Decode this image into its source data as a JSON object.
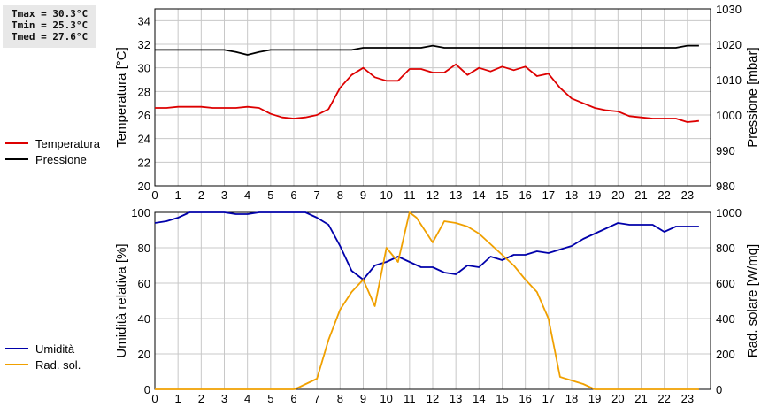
{
  "stats": {
    "tmax": "Tmax = 30.3°C",
    "tmin": "Tmin = 25.3°C",
    "tmed": "Tmed = 27.6°C"
  },
  "colors": {
    "temperatura": "#dd0000",
    "pressione": "#000000",
    "umidita": "#0000aa",
    "radsol": "#f0a000",
    "grid": "#c8c8c8",
    "axis": "#000000"
  },
  "chart_data": [
    {
      "type": "line",
      "title": "",
      "xlabel": "",
      "x_ticks": [
        "0",
        "1",
        "2",
        "3",
        "4",
        "5",
        "6",
        "7",
        "8",
        "9",
        "10",
        "11",
        "12",
        "13",
        "14",
        "15",
        "16",
        "17",
        "18",
        "19",
        "20",
        "21",
        "22",
        "23"
      ],
      "xlim": [
        0,
        24
      ],
      "ylabel_left": "Temperatura [°C]",
      "ylim_left": [
        20,
        35
      ],
      "yticks_left": [
        "20",
        "22",
        "24",
        "26",
        "28",
        "30",
        "32",
        "34"
      ],
      "ylabel_right": "Pressione [mbar]",
      "ylim_right": [
        980,
        1030
      ],
      "yticks_right": [
        "980",
        "990",
        "1000",
        "1010",
        "1020",
        "1030"
      ],
      "grid": true,
      "legend": "left",
      "series": [
        {
          "name": "Temperatura",
          "axis": "left",
          "x": [
            0,
            0.5,
            1,
            1.5,
            2,
            2.5,
            3,
            3.5,
            4,
            4.5,
            5,
            5.5,
            6,
            6.5,
            7,
            7.5,
            8,
            8.5,
            9,
            9.5,
            10,
            10.5,
            11,
            11.5,
            12,
            12.5,
            13,
            13.5,
            14,
            14.5,
            15,
            15.5,
            16,
            16.5,
            17,
            17.5,
            18,
            18.5,
            19,
            19.5,
            20,
            20.5,
            21,
            21.5,
            22,
            22.5,
            23,
            23.5
          ],
          "values": [
            26.6,
            26.6,
            26.7,
            26.7,
            26.7,
            26.6,
            26.6,
            26.6,
            26.7,
            26.6,
            26.1,
            25.8,
            25.7,
            25.8,
            26.0,
            26.5,
            28.3,
            29.4,
            30.0,
            29.2,
            28.9,
            28.9,
            29.9,
            29.9,
            29.6,
            29.6,
            30.3,
            29.4,
            30.0,
            29.7,
            30.1,
            29.8,
            30.1,
            29.3,
            29.5,
            28.3,
            27.4,
            27.0,
            26.6,
            26.4,
            26.3,
            25.9,
            25.8,
            25.7,
            25.7,
            25.7,
            25.4,
            25.5
          ]
        },
        {
          "name": "Pressione",
          "axis": "right",
          "x": [
            0,
            0.5,
            1,
            1.5,
            2,
            2.5,
            3,
            3.5,
            4,
            4.5,
            5,
            5.5,
            6,
            6.5,
            7,
            7.5,
            8,
            8.5,
            9,
            9.5,
            10,
            10.5,
            11,
            11.5,
            12,
            12.5,
            13,
            13.5,
            14,
            14.5,
            15,
            15.5,
            16,
            16.5,
            17,
            17.5,
            18,
            18.5,
            19,
            19.5,
            20,
            20.5,
            21,
            21.5,
            22,
            22.5,
            23,
            23.5
          ],
          "values": [
            1018.4,
            1018.4,
            1018.4,
            1018.4,
            1018.4,
            1018.4,
            1018.4,
            1017.8,
            1017.0,
            1017.8,
            1018.4,
            1018.4,
            1018.4,
            1018.4,
            1018.4,
            1018.4,
            1018.4,
            1018.4,
            1019.0,
            1019.0,
            1019.0,
            1019.0,
            1019.0,
            1019.0,
            1019.6,
            1019.0,
            1019.0,
            1019.0,
            1019.0,
            1019.0,
            1019.0,
            1019.0,
            1019.0,
            1019.0,
            1019.0,
            1019.0,
            1019.0,
            1019.0,
            1019.0,
            1019.0,
            1019.0,
            1019.0,
            1019.0,
            1019.0,
            1019.0,
            1019.0,
            1019.6,
            1019.6
          ]
        }
      ]
    },
    {
      "type": "line",
      "title": "",
      "xlabel": "",
      "x_ticks": [
        "0",
        "1",
        "2",
        "3",
        "4",
        "5",
        "6",
        "7",
        "8",
        "9",
        "10",
        "11",
        "12",
        "13",
        "14",
        "15",
        "16",
        "17",
        "18",
        "19",
        "20",
        "21",
        "22",
        "23"
      ],
      "xlim": [
        0,
        24
      ],
      "ylabel_left": "Umidità relativa [%]",
      "ylim_left": [
        0,
        100
      ],
      "yticks_left": [
        "0",
        "20",
        "40",
        "60",
        "80",
        "100"
      ],
      "ylabel_right": "Rad. solare [W/mq]",
      "ylim_right": [
        0,
        1000
      ],
      "yticks_right": [
        "0",
        "200",
        "400",
        "600",
        "800",
        "1000"
      ],
      "grid": true,
      "legend": "left",
      "series": [
        {
          "name": "Umidità",
          "axis": "left",
          "x": [
            0,
            0.5,
            1,
            1.5,
            2,
            2.5,
            3,
            3.5,
            4,
            4.5,
            5,
            5.5,
            6,
            6.5,
            7,
            7.5,
            8,
            8.5,
            9,
            9.5,
            10,
            10.5,
            11,
            11.5,
            12,
            12.5,
            13,
            13.5,
            14,
            14.5,
            15,
            15.5,
            16,
            16.5,
            17,
            17.5,
            18,
            18.5,
            19,
            19.5,
            20,
            20.5,
            21,
            21.5,
            22,
            22.5,
            23,
            23.5
          ],
          "values": [
            94,
            95,
            97,
            100,
            100,
            100,
            100,
            99,
            99,
            100,
            100,
            100,
            100,
            100,
            97,
            93,
            81,
            67,
            62,
            70,
            72,
            75,
            72,
            69,
            69,
            66,
            65,
            70,
            69,
            75,
            73,
            76,
            76,
            78,
            77,
            79,
            81,
            85,
            88,
            91,
            94,
            93,
            93,
            93,
            89,
            92,
            92,
            92
          ]
        },
        {
          "name": "Rad. sol.",
          "axis": "right",
          "x": [
            0,
            0.5,
            1,
            1.5,
            2,
            2.5,
            3,
            3.5,
            4,
            4.5,
            5,
            5.5,
            6,
            6.2,
            7,
            7.5,
            8,
            8.5,
            9,
            9.5,
            10,
            10.5,
            11,
            11.3,
            12,
            12.5,
            13,
            13.5,
            14,
            14.5,
            15,
            15.5,
            16,
            16.5,
            17,
            17.5,
            18,
            18.5,
            19,
            19.5,
            20,
            20.5,
            21,
            21.5,
            22,
            22.5,
            23,
            23.5
          ],
          "values": [
            0,
            0,
            0,
            0,
            0,
            0,
            0,
            0,
            0,
            0,
            0,
            0,
            0,
            10,
            60,
            280,
            450,
            550,
            620,
            470,
            800,
            720,
            1000,
            970,
            830,
            950,
            940,
            920,
            880,
            820,
            760,
            700,
            620,
            550,
            400,
            70,
            50,
            30,
            0,
            0,
            0,
            0,
            0,
            0,
            0,
            0,
            0,
            0
          ]
        }
      ]
    }
  ]
}
